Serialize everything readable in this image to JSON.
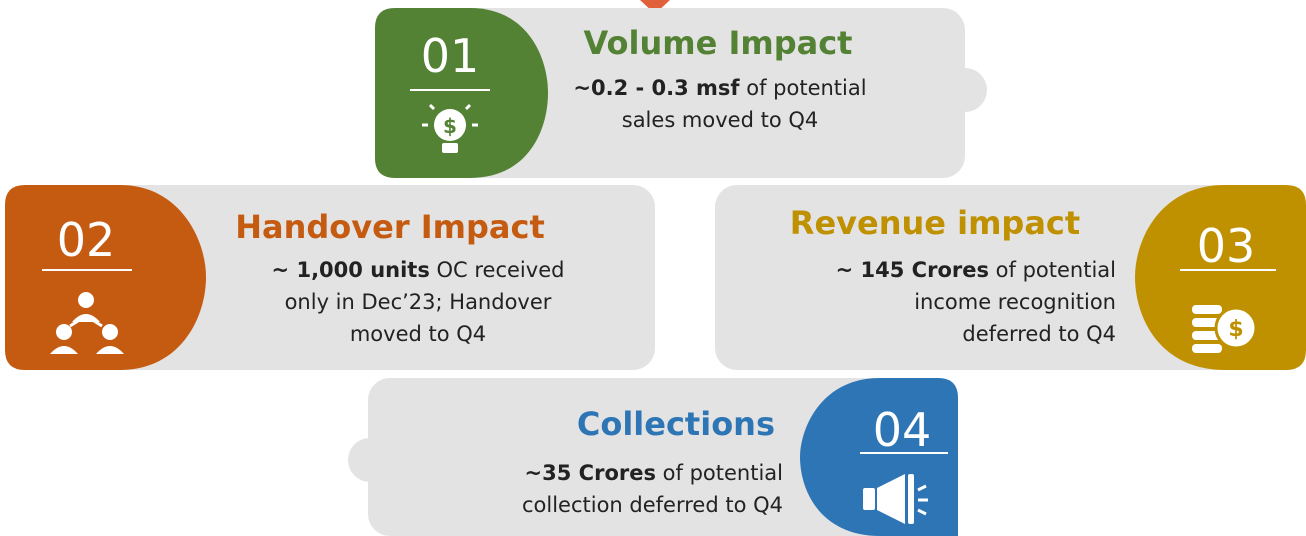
{
  "cards": [
    {
      "number": "01",
      "title": "Volume Impact",
      "color": "#548235",
      "lines": [
        [
          {
            "text": "~0.2 - 0.3 msf",
            "bold": true
          },
          {
            "text": " of potential"
          }
        ],
        [
          {
            "text": "sales moved to Q4"
          }
        ]
      ]
    },
    {
      "number": "02",
      "title": "Handover Impact",
      "color": "#c55a11",
      "lines": [
        [
          {
            "text": "~ 1,000 units",
            "bold": true
          },
          {
            "text": " OC received"
          }
        ],
        [
          {
            "text": "only in Dec’23; Handover"
          }
        ],
        [
          {
            "text": "moved to Q4"
          }
        ]
      ]
    },
    {
      "number": "03",
      "title": "Revenue impact",
      "color": "#bf9000",
      "lines": [
        [
          {
            "text": "~ 145 Crores",
            "bold": true
          },
          {
            "text": " of potential"
          }
        ],
        [
          {
            "text": "income recognition"
          }
        ],
        [
          {
            "text": "deferred to Q4"
          }
        ]
      ]
    },
    {
      "number": "04",
      "title": "Collections",
      "color": "#2e75b6",
      "lines": [
        [
          {
            "text": "~35 Crores",
            "bold": true
          },
          {
            "text": " of potential"
          }
        ],
        [
          {
            "text": "collection deferred to Q4"
          }
        ]
      ]
    }
  ]
}
